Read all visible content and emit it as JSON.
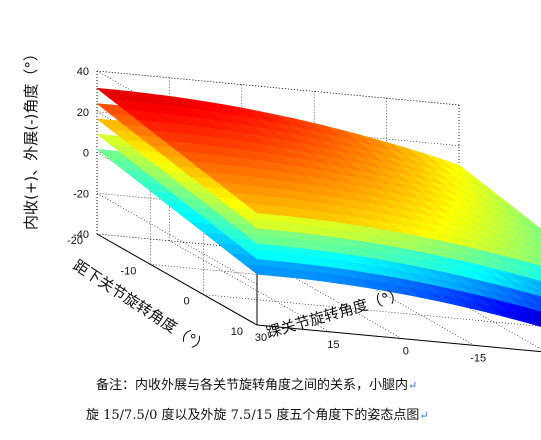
{
  "chart_data": {
    "type": "surface3d",
    "z_label": "内收(+)、外展(-)角度（°）",
    "x_label": "踝关节旋转角度（°）",
    "y_label": "距下关节旋转角度（°）",
    "z_ticks": [
      "40",
      "20",
      "0",
      "-20",
      "-40"
    ],
    "x_ticks": [
      "30",
      "15",
      "0",
      "-15",
      "-30",
      "-45"
    ],
    "y_ticks": [
      "-20",
      "-10",
      "0",
      "10"
    ],
    "z_range": [
      -40,
      40
    ],
    "x_range": [
      -45,
      30
    ],
    "y_range": [
      -20,
      10
    ],
    "grid": true,
    "colormap": "jet",
    "series": [
      {
        "offset": 17.5
      },
      {
        "offset": 10
      },
      {
        "offset": 2.5
      },
      {
        "offset": -5
      },
      {
        "offset": -12.5
      }
    ]
  },
  "caption": {
    "line1": "备注：内收外展与各关节旋转角度之间的关系，小腿内",
    "line2": "旋 15/7.5/0 度以及外旋 7.5/15 度五个角度下的姿态点图",
    "return_mark": "↵"
  }
}
